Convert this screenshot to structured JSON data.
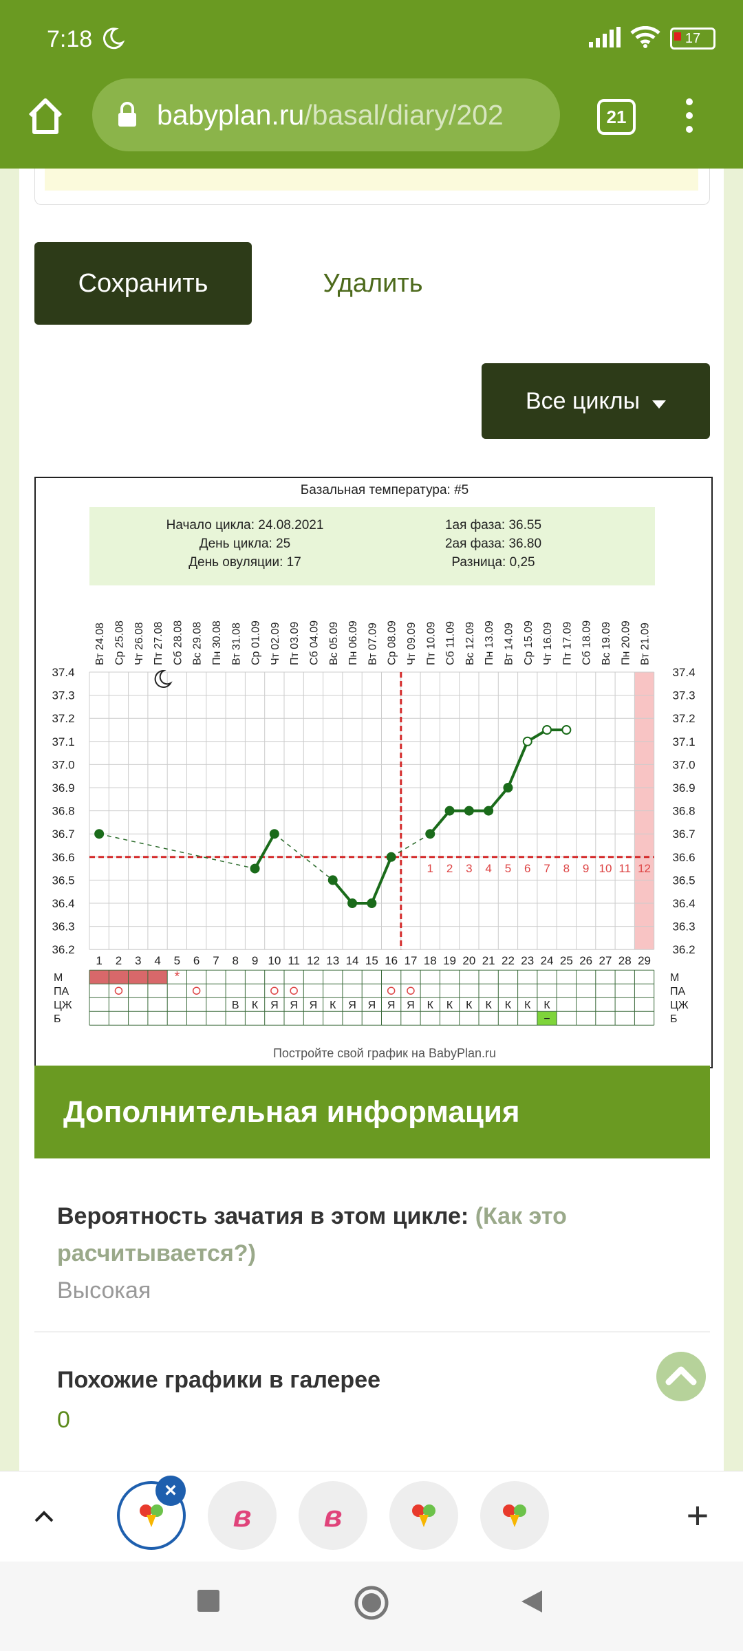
{
  "status": {
    "time": "7:18",
    "battery": "17"
  },
  "browser": {
    "url_domain": "babyplan.ru",
    "url_path": "/basal/diary/202",
    "tabs_count": "21"
  },
  "form": {
    "save_label": "Сохранить",
    "delete_label": "Удалить",
    "all_cycles_label": "Все циклы"
  },
  "chart_data": {
    "type": "line",
    "title": "Базальная температура: #5",
    "summary": {
      "cycle_start": "Начало цикла: 24.08.2021",
      "cycle_day": "День цикла: 25",
      "ovulation_day": "День овуляции: 17",
      "phase1": "1ая фаза: 36.55",
      "phase2": "2ая фаза: 36.80",
      "difference": "Разница: 0,25"
    },
    "dates": [
      "Вт 24.08",
      "Ср 25.08",
      "Чт 26.08",
      "Пт 27.08",
      "Сб 28.08",
      "Вс 29.08",
      "Пн 30.08",
      "Вт 31.08",
      "Ср 01.09",
      "Чт 02.09",
      "Пт 03.09",
      "Сб 04.09",
      "Вс 05.09",
      "Пн 06.09",
      "Вт 07.09",
      "Ср 08.09",
      "Чт 09.09",
      "Пт 10.09",
      "Сб 11.09",
      "Вс 12.09",
      "Пн 13.09",
      "Вт 14.09",
      "Ср 15.09",
      "Чт 16.09",
      "Пт 17.09",
      "Сб 18.09",
      "Вс 19.09",
      "Пн 20.09",
      "Вт 21.09"
    ],
    "days": [
      1,
      2,
      3,
      4,
      5,
      6,
      7,
      8,
      9,
      10,
      11,
      12,
      13,
      14,
      15,
      16,
      17,
      18,
      19,
      20,
      21,
      22,
      23,
      24,
      25,
      26,
      27,
      28,
      29
    ],
    "y_ticks": [
      "37.4",
      "37.3",
      "37.2",
      "37.1",
      "37.0",
      "36.9",
      "36.8",
      "36.7",
      "36.6",
      "36.5",
      "36.4",
      "36.3",
      "36.2"
    ],
    "ylim": [
      36.2,
      37.4
    ],
    "temperatures": [
      {
        "day": 1,
        "t": 36.7
      },
      {
        "day": 9,
        "t": 36.55
      },
      {
        "day": 10,
        "t": 36.7
      },
      {
        "day": 13,
        "t": 36.5
      },
      {
        "day": 14,
        "t": 36.4
      },
      {
        "day": 15,
        "t": 36.4
      },
      {
        "day": 16,
        "t": 36.6
      },
      {
        "day": 18,
        "t": 36.7
      },
      {
        "day": 19,
        "t": 36.8
      },
      {
        "day": 20,
        "t": 36.8
      },
      {
        "day": 21,
        "t": 36.8
      },
      {
        "day": 22,
        "t": 36.9
      },
      {
        "day": 23,
        "t": 37.1
      },
      {
        "day": 24,
        "t": 37.15
      },
      {
        "day": 25,
        "t": 37.15
      }
    ],
    "coverline": 36.6,
    "ovulation_day": 17,
    "luteal_days": [
      "1",
      "2",
      "3",
      "4",
      "5",
      "6",
      "7",
      "8",
      "9",
      "10",
      "11",
      "12"
    ],
    "row_labels": [
      "М",
      "ПА",
      "ЦЖ",
      "Б"
    ],
    "menstruation_days": [
      1,
      2,
      3,
      4
    ],
    "star_day": 5,
    "pa_days": [
      2,
      6,
      10,
      11,
      16,
      17
    ],
    "cm_values": {
      "8": "В",
      "9": "К",
      "10": "Я",
      "11": "Я",
      "12": "Я",
      "13": "К",
      "14": "Я",
      "15": "Я",
      "16": "Я",
      "17": "Я",
      "18": "К",
      "19": "К",
      "20": "К",
      "21": "К",
      "22": "К",
      "23": "К",
      "24": "К"
    },
    "test_day": 24,
    "test_mark": "−",
    "footer": "Постройте свой график на BabyPlan.ru",
    "colors": {
      "line": "#1a6b1a",
      "coverline": "#d42a2a",
      "menstruation": "#d8686a",
      "last_day": "#f8c4c4",
      "summary_bg": "#e8f5d8",
      "test_bg": "#7ed43a"
    }
  },
  "info": {
    "header": "Дополнительная информация",
    "probability_label": "Вероятность зачатия в этом цикле:",
    "probability_link": "(Как это расчитывается?)",
    "probability_value": "Высокая",
    "similar_label": "Похожие графики в галерее",
    "similar_value": "0"
  },
  "bottom_tabs": [
    "yandex-tab",
    "b-tab",
    "b-tab",
    "yandex-tab",
    "yandex-tab"
  ]
}
